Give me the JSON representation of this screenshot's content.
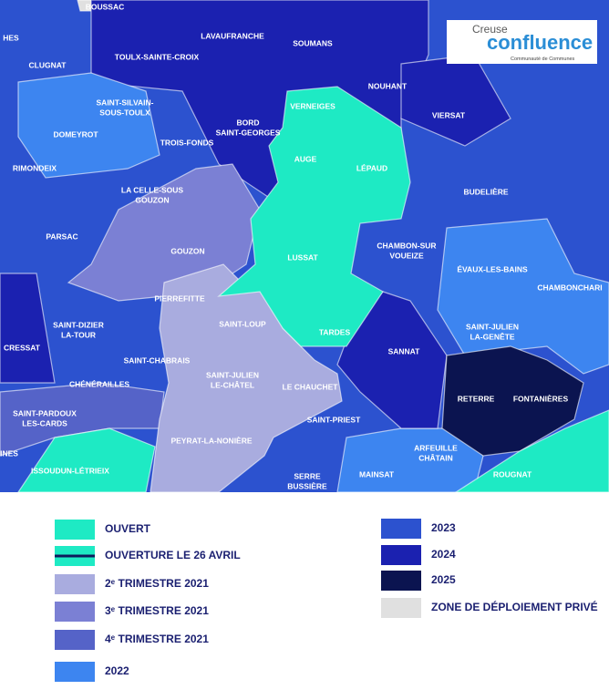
{
  "map": {
    "logo": {
      "top": "Creuse",
      "main": "confluence",
      "sub": "Communauté de Communes"
    },
    "communes": [
      [
        "HES"
      ],
      [
        "BOUSSAC"
      ],
      [
        "CLUGNAT"
      ],
      [
        "TOULX-SAINTE-CROIX"
      ],
      [
        "LAVAUFRANCHE"
      ],
      [
        "SOUMANS"
      ],
      [
        "NOUHANT"
      ],
      [
        "VIERSAT"
      ],
      [
        "VERNEIGES"
      ],
      [
        "SAINT-SILVAIN-",
        "SOUS-TOULX"
      ],
      [
        "DOMEYROT"
      ],
      [
        "TROIS-FONDS"
      ],
      [
        "BORD",
        "SAINT-GEORGES"
      ],
      [
        "AUGE"
      ],
      [
        "LÉPAUD"
      ],
      [
        "RIMONDEIX"
      ],
      [
        "LA CELLE-SOUS",
        "GOUZON"
      ],
      [
        "BUDELIÈRE"
      ],
      [
        "PARSAC"
      ],
      [
        "GOUZON"
      ],
      [
        "LUSSAT"
      ],
      [
        "CHAMBON-SUR",
        "VOUEIZE"
      ],
      [
        "ÉVAUX-LES-BAINS"
      ],
      [
        "CHAMBONCHARI"
      ],
      [
        "PIERREFITTE"
      ],
      [
        "SAINT-LOUP"
      ],
      [
        "SAINT-DIZIER",
        "LA-TOUR"
      ],
      [
        "TARDES"
      ],
      [
        "SAINT-JULIEN",
        "LA-GENÊTE"
      ],
      [
        "CRESSAT"
      ],
      [
        "SAINT-CHABRAIS"
      ],
      [
        "SANNAT"
      ],
      [
        "CHÉNÉRAILLES"
      ],
      [
        "SAINT-JULIEN",
        "LE-CHÂTEL"
      ],
      [
        "LE CHAUCHET"
      ],
      [
        "RETERRE"
      ],
      [
        "FONTANIÈRES"
      ],
      [
        "SAINT-PARDOUX",
        "LES-CARDS"
      ],
      [
        "SAINT-PRIEST"
      ],
      [
        "PEYRAT-LA-NONIÈRE"
      ],
      [
        "ARFEUILLE",
        "CHÂTAIN"
      ],
      [
        "INES"
      ],
      [
        "ISSOUDUN-LÉTRIEIX"
      ],
      [
        "MAINSAT"
      ],
      [
        "ROUGNAT"
      ],
      [
        "SERRE",
        "BUSSIÈRE"
      ]
    ]
  },
  "legend": [
    {
      "label": "OUVERT",
      "color": "#1eeac4"
    },
    {
      "label": "OUVERTURE LE 26 AVRIL",
      "color": "#1eeac4",
      "outline": "#0d1a5c"
    },
    {
      "label": "2ᵉ TRIMESTRE 2021",
      "color": "#a9acdf"
    },
    {
      "label": "3ᵉ TRIMESTRE 2021",
      "color": "#7b80d4"
    },
    {
      "label": "4ᵉ TRIMESTRE 2021",
      "color": "#5563c8"
    },
    {
      "label": "2022",
      "color": "#3d85f0"
    },
    {
      "label": "2023",
      "color": "#2c52cf"
    },
    {
      "label": "2024",
      "color": "#1b21b0"
    },
    {
      "label": "2025",
      "color": "#0b1450"
    },
    {
      "label": "ZONE DE DÉPLOIEMENT PRIVÉ",
      "color": "#e0e0e0"
    }
  ]
}
